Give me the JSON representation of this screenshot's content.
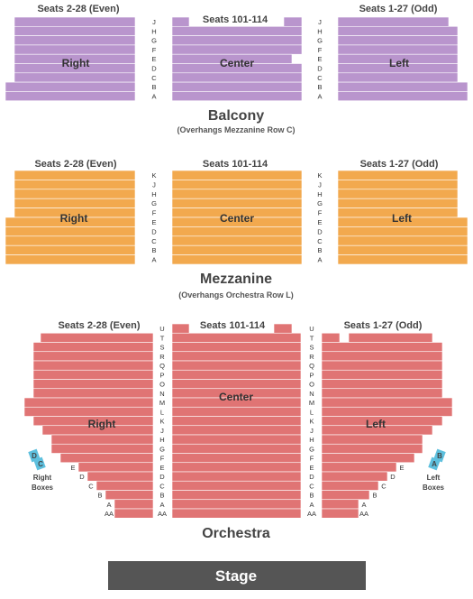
{
  "colors": {
    "balcony": "#b995cd",
    "mezzanine": "#f2a94e",
    "orchestra": "#e07474",
    "boxes": "#5ec0de",
    "stage": "#555555"
  },
  "balcony": {
    "title": "Balcony",
    "subtitle": "(Overhangs Mezzanine Row C)",
    "right_header": "Seats 2-28 (Even)",
    "center_header": "Seats 101-114",
    "left_header": "Seats 1-27 (Odd)",
    "right_name": "Right",
    "center_name": "Center",
    "left_name": "Left",
    "rows": [
      "J",
      "H",
      "G",
      "F",
      "E",
      "D",
      "C",
      "B",
      "A"
    ]
  },
  "mezzanine": {
    "title": "Mezzanine",
    "subtitle": "(Overhangs Orchestra Row L)",
    "right_header": "Seats 2-28 (Even)",
    "center_header": "Seats 101-114",
    "left_header": "Seats 1-27 (Odd)",
    "right_name": "Right",
    "center_name": "Center",
    "left_name": "Left",
    "rows": [
      "K",
      "J",
      "H",
      "G",
      "F",
      "E",
      "D",
      "C",
      "B",
      "A"
    ]
  },
  "orchestra": {
    "title": "Orchestra",
    "right_header": "Seats 2-28 (Even)",
    "center_header": "Seats 101-114",
    "left_header": "Seats 1-27 (Odd)",
    "right_name": "Right",
    "center_name": "Center",
    "left_name": "Left",
    "rows": [
      "U",
      "T",
      "S",
      "R",
      "Q",
      "P",
      "O",
      "N",
      "M",
      "L",
      "K",
      "J",
      "H",
      "G",
      "F",
      "E",
      "D",
      "C",
      "B",
      "A",
      "AA"
    ],
    "right_boxes_label_1": "Right",
    "right_boxes_label_2": "Boxes",
    "left_boxes_label_1": "Left",
    "left_boxes_label_2": "Boxes",
    "right_box_letters": [
      "D",
      "C"
    ],
    "left_box_letters": [
      "B",
      "A"
    ]
  },
  "stage": {
    "label": "Stage"
  }
}
